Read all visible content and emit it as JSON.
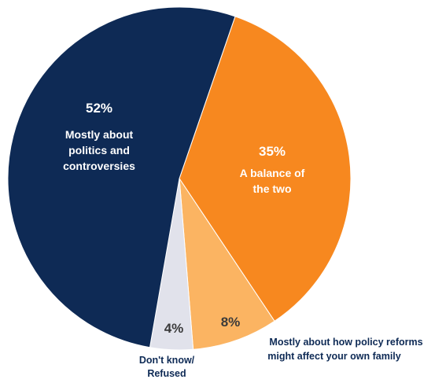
{
  "chart_data": {
    "type": "pie",
    "start_angle_deg": 19,
    "direction": "clockwise",
    "slices": [
      {
        "label": "A balance of the two",
        "value": 35,
        "display": "35%",
        "color": "#F7881F"
      },
      {
        "label": "Mostly about how policy reforms might affect your own family",
        "value": 8,
        "display": "8%",
        "color": "#FBB462"
      },
      {
        "label": "Don't know/ Refused",
        "value": 4,
        "display": "4%",
        "color": "#E1E2EB"
      },
      {
        "label": "Mostly about politics and controversies",
        "value": 52,
        "display": "52%",
        "color": "#0E2A55"
      }
    ]
  },
  "labels": {
    "politics": {
      "pct": "52%",
      "lines": [
        "Mostly about",
        "politics and",
        "controversies"
      ]
    },
    "balance": {
      "pct": "35%",
      "lines": [
        "A balance of",
        "the two"
      ]
    },
    "family": {
      "pct": "8%",
      "lines": [
        "Mostly about how policy reforms",
        "might affect your own family"
      ]
    },
    "dontknow": {
      "pct": "4%",
      "lines": [
        "Don't know/",
        "Refused"
      ]
    }
  }
}
